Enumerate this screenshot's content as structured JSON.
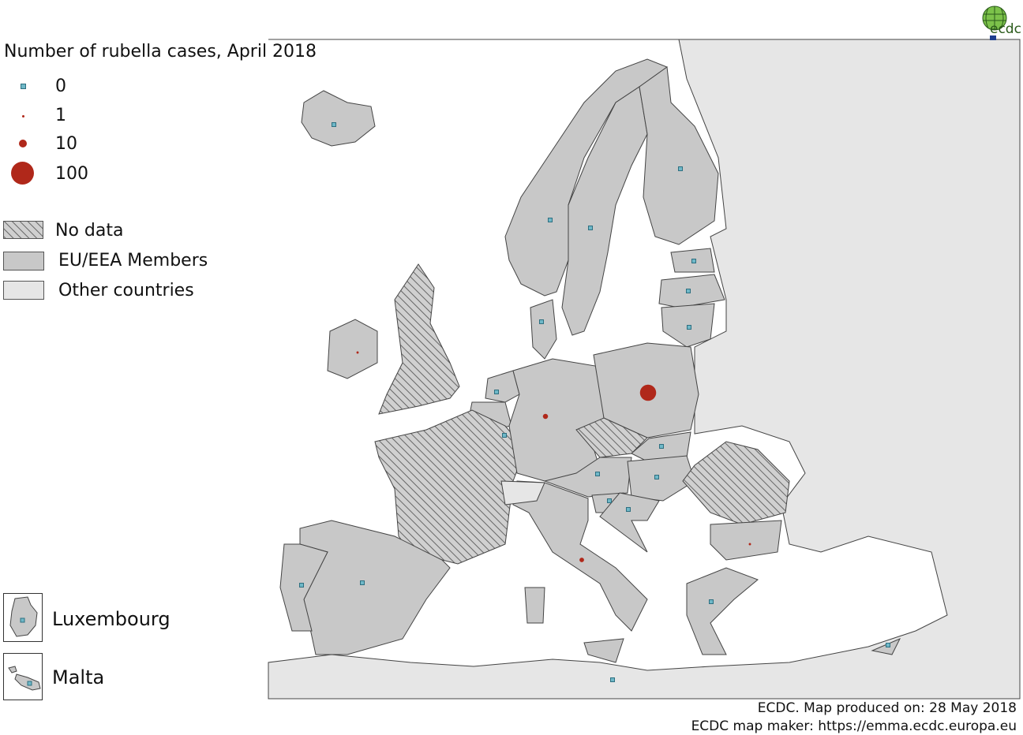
{
  "title": "Number of rubella cases, April 2018",
  "legend": {
    "size_classes": [
      {
        "label": "0",
        "cases": 0
      },
      {
        "label": "1",
        "cases": 1
      },
      {
        "label": "10",
        "cases": 10
      },
      {
        "label": "100",
        "cases": 100
      }
    ],
    "fill_classes": [
      {
        "label": "No data",
        "style": "hatched"
      },
      {
        "label": "EU/EEA Members",
        "color": "#c8c8c8"
      },
      {
        "label": "Other countries",
        "color": "#e6e6e6"
      }
    ]
  },
  "insets": [
    {
      "label": "Luxembourg",
      "cases": 0
    },
    {
      "label": "Malta",
      "cases": 0
    }
  ],
  "colors": {
    "zero_marker": "#6fb8c8",
    "case_marker": "#b0281a",
    "eu": "#c8c8c8",
    "other": "#e6e6e6",
    "sea": "#ffffff",
    "border": "#444444"
  },
  "markers": [
    {
      "id": "IS",
      "cases": 0
    },
    {
      "id": "NO",
      "cases": 0
    },
    {
      "id": "SE",
      "cases": 0
    },
    {
      "id": "FI",
      "cases": 0
    },
    {
      "id": "EE",
      "cases": 0
    },
    {
      "id": "LV",
      "cases": 0
    },
    {
      "id": "LT",
      "cases": 0
    },
    {
      "id": "DK",
      "cases": 0
    },
    {
      "id": "IE",
      "cases": 1
    },
    {
      "id": "NL",
      "cases": 0
    },
    {
      "id": "BE",
      "cases": 0
    },
    {
      "id": "DE",
      "cases": 5
    },
    {
      "id": "PL",
      "cases": 50
    },
    {
      "id": "SK",
      "cases": 0
    },
    {
      "id": "AT",
      "cases": 0
    },
    {
      "id": "HU",
      "cases": 0
    },
    {
      "id": "SI",
      "cases": 0
    },
    {
      "id": "HR",
      "cases": 0
    },
    {
      "id": "IT",
      "cases": 4
    },
    {
      "id": "BG",
      "cases": 1
    },
    {
      "id": "GR",
      "cases": 0
    },
    {
      "id": "CY",
      "cases": 0
    },
    {
      "id": "ES",
      "cases": 0
    },
    {
      "id": "PT",
      "cases": 0
    },
    {
      "id": "MT",
      "cases": 0
    }
  ],
  "footer": {
    "line1": "ECDC. Map produced on: 28 May 2018",
    "line2": "ECDC map maker: https://emma.ecdc.europa.eu"
  },
  "logo_text": "ecdc"
}
